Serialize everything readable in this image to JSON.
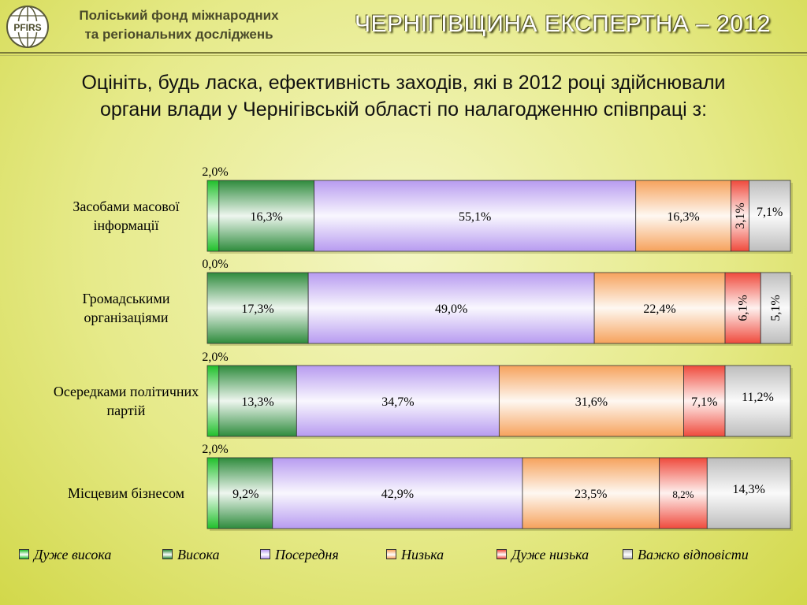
{
  "header": {
    "org_line1": "Поліський фонд міжнародних",
    "org_line2": "та регіональних досліджень",
    "logo_text": "PFIRS",
    "title": "ЧЕРНІГІВЩИНА ЕКСПЕРТНА – 2012"
  },
  "question": {
    "line1": "Оцініть, будь ласка, ефективність заходів, які в 2012 році здійснювали",
    "line2": "органи влади у Чернігівській області по налагодженню співпраці з:"
  },
  "colors": {
    "very_high": "#1fbf2a",
    "high": "#2e8b3c",
    "medium": "#b79bf0",
    "low": "#f6a25c",
    "very_low": "#ef4a3c",
    "hard": "#bdbdbd"
  },
  "chart_data": {
    "type": "bar",
    "orientation": "horizontal",
    "stacked": true,
    "categories": [
      [
        "Засобами масової",
        "інформації"
      ],
      [
        "Громадськими",
        "організаціями"
      ],
      [
        "Осередками політичних",
        "партій"
      ],
      [
        "Місцевим бізнесом"
      ]
    ],
    "series": [
      {
        "name": "Дуже висока",
        "key": "very_high",
        "values": [
          2.0,
          0.0,
          2.0,
          2.0
        ],
        "labels": [
          "2,0%",
          "0,0%",
          "2,0%",
          "2,0%"
        ]
      },
      {
        "name": "Висока",
        "key": "high",
        "values": [
          16.3,
          17.3,
          13.3,
          9.2
        ],
        "labels": [
          "16,3%",
          "17,3%",
          "13,3%",
          "9,2%"
        ]
      },
      {
        "name": "Посередня",
        "key": "medium",
        "values": [
          55.1,
          49.0,
          34.7,
          42.9
        ],
        "labels": [
          "55,1%",
          "49,0%",
          "34,7%",
          "42,9%"
        ]
      },
      {
        "name": "Низька",
        "key": "low",
        "values": [
          16.3,
          22.4,
          31.6,
          23.5
        ],
        "labels": [
          "16,3%",
          "22,4%",
          "31,6%",
          "23,5%"
        ]
      },
      {
        "name": "Дуже низька",
        "key": "very_low",
        "values": [
          3.1,
          6.1,
          7.1,
          8.2
        ],
        "labels": [
          "3,1%",
          "6,1%",
          "7,1%",
          "8,2%"
        ]
      },
      {
        "name": "Важко відповісти",
        "key": "hard",
        "values": [
          7.1,
          5.1,
          11.2,
          14.3
        ],
        "labels": [
          "7,1%",
          "5,1%",
          "11,2%",
          "14,3%"
        ]
      }
    ],
    "xlim": [
      0,
      100
    ],
    "legend": "bottom",
    "grid": false
  }
}
